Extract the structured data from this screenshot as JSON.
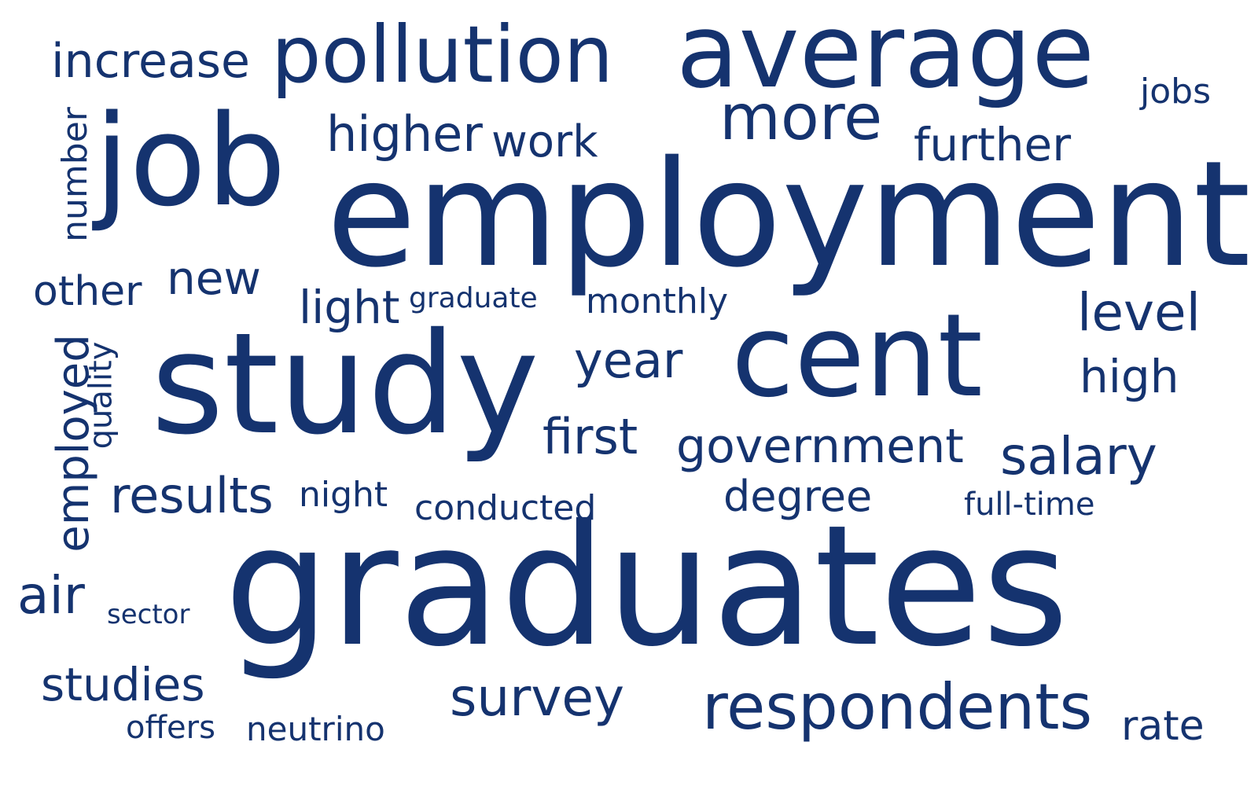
{
  "cloud": {
    "text_color": "#15336f",
    "background": "#ffffff",
    "words": [
      "increase",
      "pollution",
      "average",
      "jobs",
      "number",
      "job",
      "higher",
      "work",
      "more",
      "further",
      "employment",
      "other",
      "new",
      "light",
      "graduate",
      "monthly",
      "level",
      "employed",
      "quality",
      "study",
      "year",
      "cent",
      "high",
      "first",
      "government",
      "salary",
      "results",
      "night",
      "conducted",
      "degree",
      "full-time",
      "air",
      "sector",
      "graduates",
      "studies",
      "survey",
      "respondents",
      "offers",
      "neutrino",
      "rate"
    ]
  }
}
